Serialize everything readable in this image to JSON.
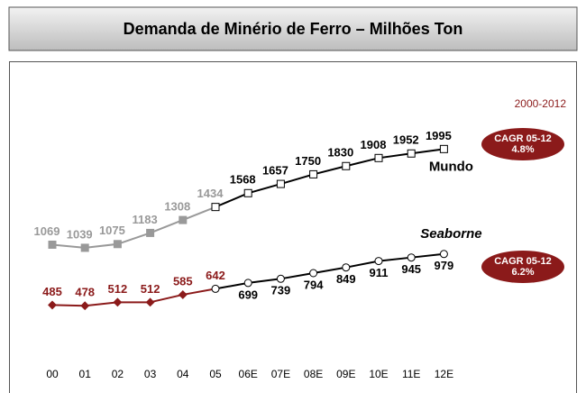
{
  "chart_data": {
    "type": "line",
    "title": "Demanda de Minério de Ferro – Milhões Ton",
    "subtitle": "2000-2012",
    "categories": [
      "00",
      "01",
      "02",
      "03",
      "04",
      "05",
      "06E",
      "07E",
      "08E",
      "09E",
      "10E",
      "11E",
      "12E"
    ],
    "series": [
      {
        "name": "Mundo",
        "color": "#999999",
        "forecast_color": "#000000",
        "marker": "square",
        "values": [
          1069,
          1039,
          1075,
          1183,
          1308,
          1434,
          1568,
          1657,
          1750,
          1830,
          1908,
          1952,
          1995
        ],
        "annotation": {
          "title": "CAGR 05-12",
          "label": "4.8%"
        }
      },
      {
        "name": "Seaborne",
        "color": "#8b1a1a",
        "forecast_color": "#000000",
        "marker": "circle",
        "values": [
          485,
          478,
          512,
          512,
          585,
          642,
          699,
          739,
          794,
          849,
          911,
          945,
          979
        ],
        "annotation": {
          "title": "CAGR 05-12",
          "label": "6.2%"
        }
      }
    ],
    "ylim": [
      0,
      2600
    ]
  }
}
